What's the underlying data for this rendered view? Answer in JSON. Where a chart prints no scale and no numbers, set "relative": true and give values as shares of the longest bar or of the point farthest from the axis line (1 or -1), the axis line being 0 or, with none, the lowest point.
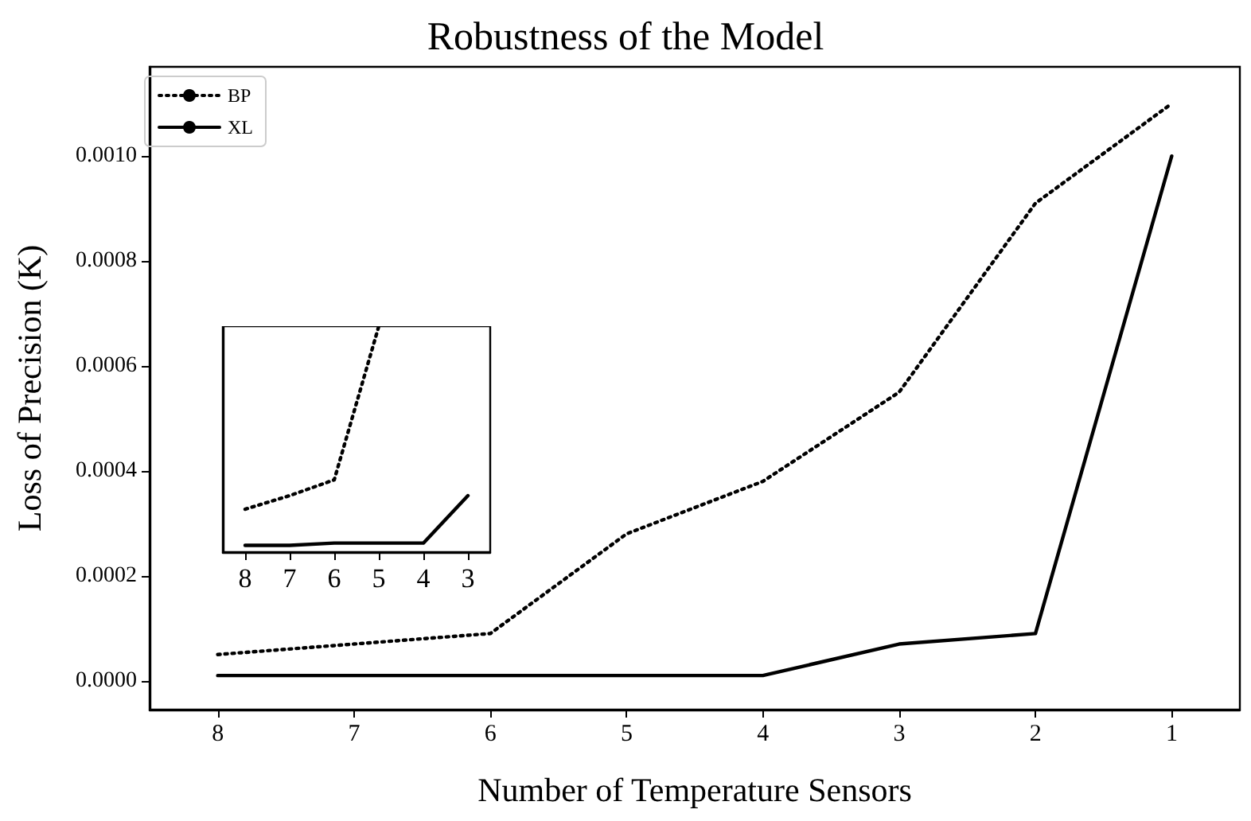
{
  "chart_data": [
    {
      "type": "line",
      "title": "Robustness of the Model",
      "xlabel": "Number of Temperature Sensors",
      "ylabel": "Loss of Precision (K)",
      "categories": [
        "8",
        "7",
        "6",
        "5",
        "4",
        "3",
        "2",
        "1"
      ],
      "series": [
        {
          "name": "BP",
          "color": "#000000",
          "line_style": "dotted",
          "values": [
            5e-05,
            7e-05,
            9e-05,
            0.00028,
            0.00038,
            0.00055,
            0.00091,
            0.0011
          ]
        },
        {
          "name": "XL",
          "color": "#000000",
          "line_style": "solid",
          "values": [
            1e-05,
            1e-05,
            1e-05,
            1e-05,
            1e-05,
            7e-05,
            9e-05,
            0.001
          ]
        }
      ],
      "ylim": [
        -5.5e-05,
        0.00117
      ],
      "yticks": [
        {
          "value": 0,
          "label": "0.0000"
        },
        {
          "value": 0.0002,
          "label": "0.0002"
        },
        {
          "value": 0.0004,
          "label": "0.0004"
        },
        {
          "value": 0.0006,
          "label": "0.0006"
        },
        {
          "value": 0.0008,
          "label": "0.0008"
        },
        {
          "value": 0.001,
          "label": "0.0010"
        }
      ],
      "grid": false,
      "legend": "top left",
      "marker": "none"
    },
    {
      "type": "line",
      "categories": [
        "8",
        "7",
        "6",
        "5",
        "4",
        "3"
      ],
      "series": [
        {
          "color": "#000000",
          "line_style": "dotted",
          "values": [
            0.19,
            0.25,
            0.32,
            1,
            null,
            null
          ]
        },
        {
          "color": "#000000",
          "line_style": "solid",
          "values": [
            0.03,
            0.03,
            0.04,
            0.04,
            0.04,
            0.25
          ]
        }
      ],
      "relative": true,
      "grid": false,
      "legend": false,
      "marker": "none"
    }
  ]
}
